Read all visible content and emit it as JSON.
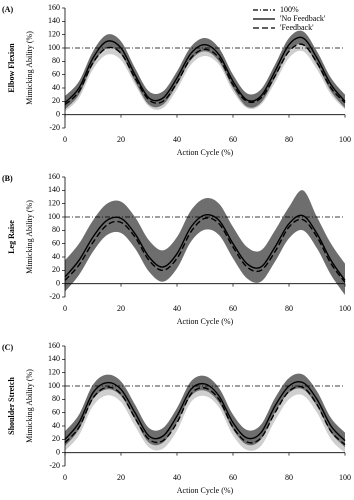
{
  "chart_data": [
    {
      "type": "line",
      "panel_label": "(A)",
      "title": "Elbow Flexion",
      "x_label": "Action Cycle (%)",
      "y_label": "Mimicking Ability (%)",
      "x": [
        0,
        5,
        10,
        15,
        20,
        25,
        30,
        35,
        40,
        45,
        50,
        55,
        60,
        65,
        70,
        75,
        80,
        85,
        90,
        95,
        100
      ],
      "xlim": [
        0,
        100
      ],
      "xticks": [
        0,
        20,
        40,
        60,
        80,
        100
      ],
      "ylim": [
        -20,
        160
      ],
      "yticks": [
        -20,
        0,
        20,
        40,
        60,
        80,
        100,
        120,
        140,
        160
      ],
      "legend": "upper right",
      "reference": {
        "name": "100%",
        "value": 100,
        "dash": "dashdot",
        "color": "#000000"
      },
      "series": [
        {
          "name": "'Feedback'",
          "color": "#000000",
          "band_color": "#cfcfcf",
          "dash": "dashed",
          "values": [
            15,
            35,
            78,
            100,
            92,
            55,
            22,
            20,
            48,
            85,
            98,
            85,
            45,
            20,
            25,
            58,
            95,
            105,
            78,
            40,
            18
          ],
          "lower": [
            5,
            25,
            68,
            90,
            82,
            45,
            12,
            10,
            38,
            75,
            88,
            75,
            35,
            10,
            15,
            48,
            85,
            95,
            68,
            30,
            8
          ],
          "upper": [
            21,
            41,
            84,
            106,
            98,
            61,
            28,
            26,
            54,
            91,
            104,
            91,
            51,
            26,
            31,
            64,
            101,
            111,
            84,
            46,
            24
          ]
        },
        {
          "name": "'No Feedback'",
          "color": "#000000",
          "band_color": "#6e6e6e",
          "dash": "solid",
          "values": [
            18,
            40,
            85,
            110,
            100,
            60,
            25,
            25,
            55,
            92,
            105,
            90,
            50,
            22,
            28,
            65,
            105,
            115,
            85,
            45,
            20
          ],
          "lower": [
            8,
            30,
            75,
            100,
            90,
            50,
            15,
            15,
            45,
            82,
            95,
            80,
            40,
            12,
            18,
            55,
            95,
            105,
            75,
            35,
            10
          ],
          "upper": [
            28,
            50,
            95,
            120,
            110,
            70,
            35,
            35,
            65,
            102,
            115,
            100,
            60,
            32,
            38,
            75,
            115,
            125,
            95,
            55,
            30
          ]
        }
      ]
    },
    {
      "type": "line",
      "panel_label": "(B)",
      "title": "Leg Raise",
      "x_label": "Action Cycle (%)",
      "y_label": "Mimicking Ability (%)",
      "x": [
        0,
        5,
        10,
        15,
        20,
        25,
        30,
        35,
        40,
        45,
        50,
        55,
        60,
        65,
        70,
        75,
        80,
        85,
        90,
        95,
        100
      ],
      "xlim": [
        0,
        100
      ],
      "xticks": [
        0,
        20,
        40,
        60,
        80,
        100
      ],
      "ylim": [
        -20,
        160
      ],
      "yticks": [
        -20,
        0,
        20,
        40,
        60,
        80,
        100,
        120,
        140,
        160
      ],
      "reference": {
        "value": 100,
        "dash": "dashdot",
        "color": "#000000"
      },
      "series": [
        {
          "color": "#000000",
          "band_color": "#cfcfcf",
          "dash": "dashed",
          "values": [
            5,
            28,
            62,
            88,
            92,
            70,
            35,
            20,
            38,
            78,
            98,
            90,
            55,
            25,
            20,
            48,
            85,
            96,
            70,
            30,
            2
          ],
          "lower": [
            -7,
            16,
            50,
            76,
            80,
            58,
            23,
            8,
            26,
            66,
            86,
            78,
            43,
            13,
            8,
            36,
            73,
            84,
            58,
            18,
            -10
          ],
          "upper": [
            17,
            40,
            74,
            100,
            104,
            82,
            47,
            32,
            50,
            90,
            110,
            102,
            67,
            37,
            32,
            60,
            97,
            108,
            82,
            42,
            14
          ]
        },
        {
          "color": "#000000",
          "band_color": "#6e6e6e",
          "dash": "solid",
          "values": [
            10,
            35,
            70,
            95,
            98,
            75,
            40,
            25,
            45,
            85,
            103,
            95,
            60,
            30,
            25,
            55,
            90,
            102,
            75,
            35,
            5
          ],
          "lower": [
            -12,
            13,
            48,
            73,
            76,
            53,
            18,
            3,
            23,
            63,
            81,
            73,
            38,
            8,
            3,
            33,
            68,
            80,
            53,
            13,
            -17
          ],
          "upper": [
            35,
            60,
            95,
            120,
            123,
            100,
            65,
            50,
            70,
            110,
            128,
            120,
            85,
            55,
            50,
            80,
            115,
            140,
            100,
            60,
            30
          ]
        }
      ]
    },
    {
      "type": "line",
      "panel_label": "(C)",
      "title": "Shoulder Stretch",
      "x_label": "Action Cycle (%)",
      "y_label": "Mimicking Ability (%)",
      "x": [
        0,
        5,
        10,
        15,
        20,
        25,
        30,
        35,
        40,
        45,
        50,
        55,
        60,
        65,
        70,
        75,
        80,
        85,
        90,
        95,
        100
      ],
      "xlim": [
        0,
        100
      ],
      "xticks": [
        0,
        20,
        40,
        60,
        80,
        100
      ],
      "ylim": [
        -20,
        160
      ],
      "yticks": [
        -20,
        0,
        20,
        40,
        60,
        80,
        100,
        120,
        140,
        160
      ],
      "reference": {
        "value": 100,
        "dash": "dashdot",
        "color": "#000000"
      },
      "series": [
        {
          "color": "#000000",
          "band_color": "#cfcfcf",
          "dash": "dashed",
          "values": [
            15,
            38,
            82,
            98,
            88,
            52,
            20,
            18,
            45,
            88,
            97,
            80,
            38,
            16,
            22,
            60,
            92,
            98,
            72,
            32,
            12
          ],
          "lower": [
            3,
            26,
            70,
            86,
            76,
            40,
            8,
            6,
            33,
            76,
            85,
            68,
            26,
            4,
            10,
            48,
            80,
            86,
            60,
            20,
            0
          ],
          "upper": [
            21,
            44,
            88,
            104,
            94,
            58,
            26,
            24,
            51,
            94,
            103,
            86,
            44,
            22,
            28,
            66,
            98,
            104,
            78,
            38,
            18
          ]
        },
        {
          "color": "#000000",
          "band_color": "#6e6e6e",
          "dash": "solid",
          "values": [
            20,
            45,
            90,
            105,
            95,
            60,
            25,
            25,
            55,
            95,
            103,
            85,
            45,
            22,
            30,
            70,
            100,
            105,
            80,
            40,
            18
          ],
          "lower": [
            10,
            35,
            80,
            95,
            85,
            50,
            15,
            15,
            45,
            85,
            93,
            75,
            35,
            12,
            20,
            60,
            90,
            95,
            70,
            30,
            8
          ],
          "upper": [
            32,
            57,
            102,
            117,
            107,
            72,
            37,
            37,
            67,
            107,
            115,
            97,
            57,
            34,
            42,
            82,
            112,
            117,
            92,
            52,
            30
          ]
        }
      ]
    }
  ]
}
